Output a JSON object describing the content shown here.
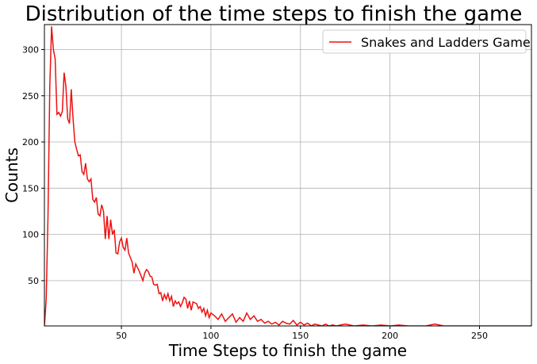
{
  "chart_data": {
    "type": "line",
    "title": "Distribution of the time steps to finish the game",
    "x_label": "Time Steps to finish the game",
    "y_label": "Counts",
    "grid": true,
    "legend": "upper right",
    "xlim": [
      7,
      279
    ],
    "ylim": [
      1,
      327
    ],
    "xticks": [
      50,
      100,
      150,
      200,
      250
    ],
    "yticks": [
      50,
      100,
      150,
      200,
      250,
      300
    ],
    "x": [
      7,
      8,
      9,
      10,
      11,
      12,
      13,
      14,
      15,
      16,
      17,
      18,
      19,
      20,
      21,
      22,
      23,
      24,
      25,
      26,
      27,
      28,
      29,
      30,
      31,
      32,
      33,
      34,
      35,
      36,
      37,
      38,
      39,
      40,
      41,
      42,
      43,
      44,
      45,
      46,
      47,
      48,
      49,
      50,
      51,
      52,
      53,
      54,
      55,
      56,
      57,
      58,
      59,
      60,
      61,
      62,
      63,
      64,
      65,
      66,
      67,
      68,
      69,
      70,
      71,
      72,
      73,
      74,
      75,
      76,
      77,
      78,
      79,
      80,
      81,
      82,
      83,
      84,
      85,
      86,
      87,
      88,
      89,
      90,
      91,
      92,
      93,
      94,
      95,
      96,
      97,
      98,
      99,
      100,
      102,
      104,
      106,
      108,
      110,
      112,
      114,
      116,
      118,
      120,
      122,
      124,
      126,
      128,
      130,
      132,
      134,
      136,
      138,
      140,
      142,
      144,
      146,
      148,
      150,
      152,
      154,
      156,
      158,
      160,
      162,
      164,
      166,
      168,
      170,
      175,
      180,
      185,
      190,
      195,
      200,
      205,
      210,
      215,
      220,
      225,
      230,
      240,
      250,
      260,
      270,
      279
    ],
    "series": [
      {
        "name": "Snakes and Ladders Game",
        "color": "#ee1111",
        "values": [
          1,
          30,
          120,
          260,
          325,
          300,
          290,
          230,
          232,
          228,
          233,
          275,
          260,
          225,
          220,
          257,
          225,
          200,
          192,
          185,
          186,
          168,
          165,
          177,
          160,
          157,
          160,
          138,
          135,
          140,
          122,
          120,
          132,
          125,
          95,
          120,
          95,
          116,
          100,
          105,
          80,
          79,
          92,
          96,
          86,
          83,
          96,
          80,
          75,
          70,
          58,
          68,
          64,
          60,
          55,
          50,
          58,
          62,
          60,
          55,
          54,
          46,
          45,
          46,
          36,
          37,
          28,
          35,
          30,
          36,
          28,
          33,
          22,
          28,
          25,
          27,
          22,
          26,
          32,
          30,
          20,
          28,
          18,
          27,
          26,
          25,
          20,
          22,
          16,
          20,
          12,
          18,
          10,
          15,
          12,
          8,
          14,
          6,
          10,
          14,
          5,
          10,
          6,
          15,
          8,
          12,
          6,
          8,
          4,
          6,
          3,
          5,
          2,
          6,
          4,
          3,
          7,
          2,
          5,
          2,
          4,
          1,
          3,
          2,
          1,
          3,
          1,
          2,
          1,
          3,
          1,
          2,
          1,
          2,
          1,
          2,
          1,
          1,
          1,
          3,
          1,
          1,
          1,
          1,
          1,
          1
        ]
      }
    ]
  }
}
